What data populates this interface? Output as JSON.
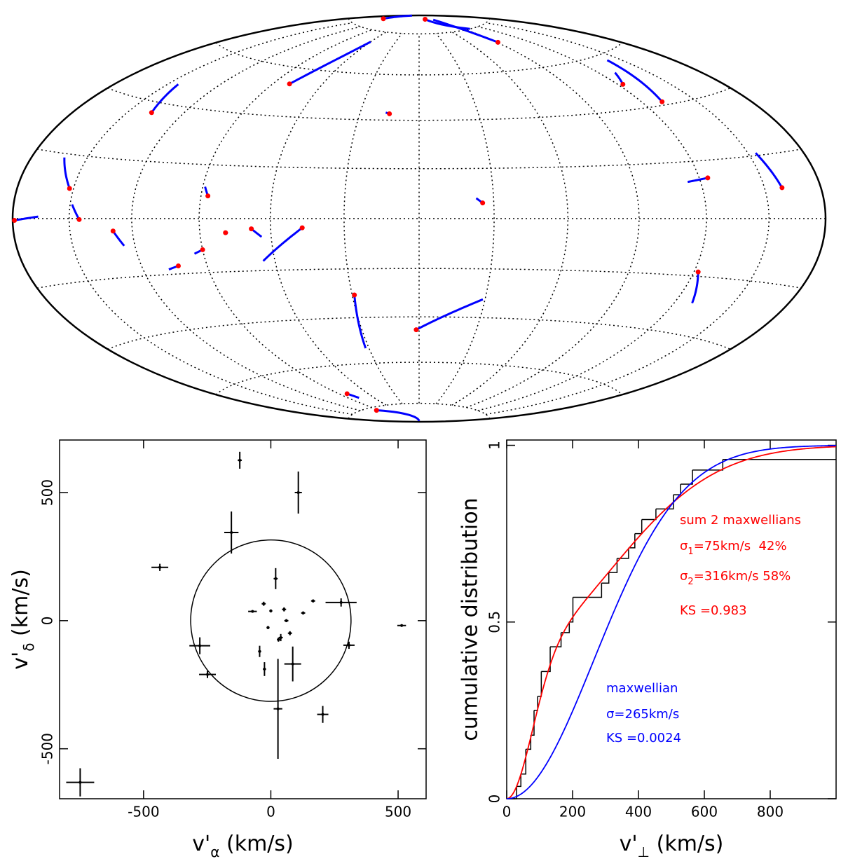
{
  "chart_data": [
    {
      "type": "map",
      "projection": "hammer",
      "grid": {
        "lon": [
          -150,
          -120,
          -90,
          -60,
          -30,
          0,
          30,
          60,
          90,
          120,
          150
        ],
        "lat": [
          -80,
          -60,
          -40,
          -20,
          0,
          20,
          40,
          60,
          80
        ]
      },
      "track_color": "#0000ff",
      "dot_color": "#ff0000",
      "tracks": [
        {
          "start": [
            44,
            87.7
          ],
          "end": [
            99,
            80
          ]
        },
        {
          "start": [
            91,
            72.6
          ],
          "end": [
            82,
            86.9
          ]
        },
        {
          "start": [
            -149,
            84.7
          ],
          "end": [
            -170,
            89
          ]
        },
        {
          "start": [
            -80,
            53.2
          ],
          "end": [
            -60,
            74.7
          ]
        },
        {
          "start": [
            -15,
            42.7
          ],
          "end": [
            -17,
            43.2
          ]
        },
        {
          "start": [
            -137,
            36.4
          ],
          "end": [
            -144,
            46.7
          ]
        },
        {
          "start": [
            123,
            49.2
          ],
          "end": [
            130,
            53.5
          ]
        },
        {
          "start": [
            131,
            41.2
          ],
          "end": [
            141,
            57.8
          ]
        },
        {
          "start": [
            -152,
            9.5
          ],
          "end": [
            -162,
            18.8
          ]
        },
        {
          "start": [
            -87,
            8.4
          ],
          "end": [
            -89,
            11.8
          ]
        },
        {
          "start": [
            124,
            14
          ],
          "end": [
            114,
            12.9
          ]
        },
        {
          "start": [
            159,
            9.5
          ],
          "end": [
            154,
            20.8
          ]
        },
        {
          "start": [
            25.5,
            6.2
          ],
          "end": [
            23,
            8.1
          ]
        },
        {
          "start": [
            -179,
            -0.5
          ],
          "end": [
            -166,
            0.6
          ]
        },
        {
          "start": [
            -145,
            -0.3
          ],
          "end": [
            -149,
            4.5
          ]
        },
        {
          "start": [
            -129,
            -4.2
          ],
          "end": [
            -125,
            -9.3
          ]
        },
        {
          "start": [
            -79,
            -5.3
          ],
          "end": [
            -78,
            -5.5
          ]
        },
        {
          "start": [
            -68,
            -3.9
          ],
          "end": [
            -64,
            -7
          ]
        },
        {
          "start": [
            -47,
            -3.6
          ],
          "end": [
            -65,
            -16.3
          ]
        },
        {
          "start": [
            -90,
            -11.5
          ],
          "end": [
            -94,
            -12.9
          ]
        },
        {
          "start": [
            -103,
            -17.1
          ],
          "end": [
            -108,
            -18.2
          ]
        },
        {
          "start": [
            122,
            -18.5
          ],
          "end": [
            129,
            -29.2
          ]
        },
        {
          "start": [
            -29,
            -30.6
          ],
          "end": [
            -32,
            -53.2
          ]
        },
        {
          "start": [
            -1.5,
            -45.5
          ],
          "end": [
            29,
            -32.4
          ]
        },
        {
          "start": [
            -82,
            -72.6
          ],
          "end": [
            -78,
            -75.1
          ]
        },
        {
          "start": [
            -96,
            -81.5
          ],
          "end": [
            0,
            -89.5
          ]
        }
      ]
    },
    {
      "type": "scatter",
      "color": "#000000",
      "x": [
        -122,
        108,
        -155,
        -436,
        19,
        -28,
        -72,
        0,
        52,
        166,
        127,
        61,
        276,
        514,
        -11,
        -279,
        307,
        39,
        75,
        30,
        -44,
        -25,
        -249,
        86,
        28,
        204,
        -749
      ],
      "values": [
        626,
        500,
        344,
        208,
        164,
        66,
        36,
        38,
        44,
        77,
        30,
        0,
        71,
        -19,
        -27,
        -98,
        -96,
        -66,
        -49,
        -74,
        -120,
        -189,
        -210,
        -169,
        -344,
        -366,
        -631
      ],
      "xerr": [
        8,
        14,
        28,
        33,
        8,
        8,
        17,
        6,
        8,
        8,
        8,
        8,
        61,
        17,
        6,
        41,
        22,
        8,
        8,
        6,
        6,
        6,
        33,
        33,
        17,
        22,
        55
      ],
      "yerr": [
        33,
        82,
        82,
        14,
        41,
        8,
        5,
        6,
        8,
        6,
        6,
        6,
        16,
        5,
        6,
        33,
        14,
        14,
        8,
        8,
        22,
        27,
        14,
        68,
        195,
        33,
        55
      ],
      "xlim": [
        -830,
        610
      ],
      "ylim": [
        -695,
        705
      ],
      "xticks": [
        -500,
        0,
        500
      ],
      "yticks": [
        -500,
        0,
        500
      ],
      "xlabel": {
        "base": "v'",
        "sub": "α",
        "unit": " (km/s)"
      },
      "ylabel": {
        "base": "v'",
        "sub": "δ",
        "unit": " (km/s)"
      },
      "circle_radius": 315
    },
    {
      "type": "cdf",
      "xlim": [
        0,
        1000
      ],
      "ylim": [
        0,
        1.015
      ],
      "xticks": [
        0,
        200,
        400,
        600,
        800
      ],
      "yticks": [
        0,
        0.5,
        1
      ],
      "xlabel": {
        "base": "v'",
        "sub": "⊥",
        "unit": " (km/s)"
      },
      "ylabel": "cumulative distribution",
      "steps": {
        "color": "#000000",
        "x": [
          30,
          43,
          58,
          73,
          83,
          94,
          105,
          132,
          165,
          190,
          201,
          288,
          310,
          335,
          370,
          389,
          410,
          453,
          506,
          528,
          564,
          656
        ],
        "values": [
          0.035,
          0.07,
          0.14,
          0.18,
          0.25,
          0.29,
          0.36,
          0.43,
          0.47,
          0.5,
          0.57,
          0.61,
          0.64,
          0.68,
          0.71,
          0.75,
          0.79,
          0.82,
          0.86,
          0.89,
          0.93,
          0.96
        ]
      },
      "models": [
        {
          "color": "#ff0000",
          "sigma": [
            75,
            316
          ],
          "weight": [
            42,
            58
          ],
          "notes": [
            {
              "text": "sum 2 maxwellians"
            },
            {
              "pre": "σ",
              "sub": "1",
              "post": "=75km/s  42%"
            },
            {
              "pre": "σ",
              "sub": "2",
              "post": "=316km/s 58%"
            },
            {
              "text": "KS =0.983"
            }
          ]
        },
        {
          "color": "#0000ff",
          "sigma": [
            265
          ],
          "notes": [
            {
              "text": "maxwellian"
            },
            {
              "text": "σ=265km/s"
            },
            {
              "text": "KS =0.0024"
            }
          ]
        }
      ]
    }
  ]
}
